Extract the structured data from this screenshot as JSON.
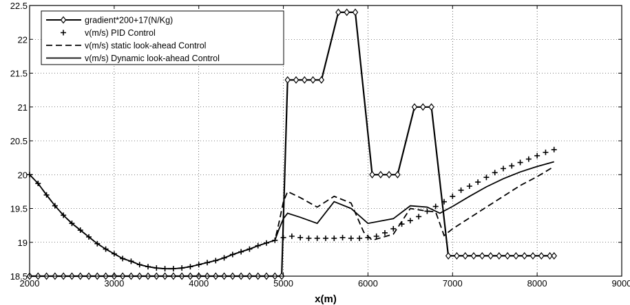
{
  "chart_data": {
    "type": "line",
    "title": "",
    "xlabel": "x(m)",
    "ylabel": "",
    "xlim": [
      2000,
      9000
    ],
    "ylim": [
      18.5,
      22.5
    ],
    "xticks": [
      2000,
      3000,
      4000,
      5000,
      6000,
      7000,
      8000,
      9000
    ],
    "xtick_labels": [
      "2000",
      "3000",
      "4000",
      "5000",
      "6000",
      "7000",
      "8000",
      "9000"
    ],
    "yticks": [
      18.5,
      19,
      19.5,
      20,
      20.5,
      21,
      21.5,
      22,
      22.5
    ],
    "ytick_labels": [
      "18.5",
      "19",
      "19.5",
      "20",
      "20.5",
      "21",
      "21.5",
      "22",
      "22.5"
    ],
    "grid": true,
    "legend_position": "top-left",
    "series": [
      {
        "name": "gradient*200+17(N/Kg)",
        "style": "solid-diamond",
        "color": "#000000",
        "x": [
          2000,
          2100,
          2200,
          2300,
          2400,
          2500,
          2600,
          2700,
          2800,
          2900,
          3000,
          3100,
          3200,
          3300,
          3400,
          3500,
          3600,
          3700,
          3800,
          3900,
          4000,
          4100,
          4200,
          4300,
          4400,
          4500,
          4600,
          4700,
          4800,
          4900,
          4980,
          5050,
          5150,
          5250,
          5350,
          5450,
          5650,
          5750,
          5850,
          6050,
          6150,
          6250,
          6350,
          6550,
          6650,
          6750,
          6950,
          7050,
          7150,
          7250,
          7350,
          7450,
          7550,
          7650,
          7750,
          7850,
          7950,
          8050,
          8150,
          8200
        ],
        "y": [
          18.5,
          18.5,
          18.5,
          18.5,
          18.5,
          18.5,
          18.5,
          18.5,
          18.5,
          18.5,
          18.5,
          18.5,
          18.5,
          18.5,
          18.5,
          18.5,
          18.5,
          18.5,
          18.5,
          18.5,
          18.5,
          18.5,
          18.5,
          18.5,
          18.5,
          18.5,
          18.5,
          18.5,
          18.5,
          18.5,
          18.5,
          21.4,
          21.4,
          21.4,
          21.4,
          21.4,
          22.4,
          22.4,
          22.4,
          20.0,
          20.0,
          20.0,
          20.0,
          21.0,
          21.0,
          21.0,
          18.8,
          18.8,
          18.8,
          18.8,
          18.8,
          18.8,
          18.8,
          18.8,
          18.8,
          18.8,
          18.8,
          18.8,
          18.8,
          18.8
        ]
      },
      {
        "name": "v(m/s) PID Control",
        "style": "plus-markers",
        "color": "#000000",
        "x": [
          2000,
          2100,
          2200,
          2300,
          2400,
          2500,
          2600,
          2700,
          2800,
          2900,
          3000,
          3100,
          3200,
          3300,
          3400,
          3500,
          3600,
          3700,
          3800,
          3900,
          4000,
          4100,
          4200,
          4300,
          4400,
          4500,
          4600,
          4700,
          4800,
          4900,
          5000,
          5100,
          5200,
          5300,
          5400,
          5500,
          5600,
          5700,
          5800,
          5900,
          6000,
          6100,
          6200,
          6300,
          6400,
          6500,
          6600,
          6700,
          6800,
          6900,
          7000,
          7100,
          7200,
          7300,
          7400,
          7500,
          7600,
          7700,
          7800,
          7900,
          8000,
          8100,
          8200
        ],
        "y": [
          20.0,
          19.87,
          19.7,
          19.54,
          19.4,
          19.28,
          19.18,
          19.08,
          18.98,
          18.9,
          18.83,
          18.76,
          18.72,
          18.67,
          18.64,
          18.62,
          18.61,
          18.61,
          18.62,
          18.64,
          18.67,
          18.7,
          18.73,
          18.77,
          18.82,
          18.86,
          18.9,
          18.95,
          18.99,
          19.03,
          19.07,
          19.09,
          19.07,
          19.06,
          19.06,
          19.06,
          19.06,
          19.07,
          19.06,
          19.06,
          19.07,
          19.09,
          19.14,
          19.2,
          19.27,
          19.32,
          19.38,
          19.46,
          19.53,
          19.6,
          19.68,
          19.77,
          19.83,
          19.89,
          19.96,
          20.03,
          20.09,
          20.13,
          20.18,
          20.23,
          20.28,
          20.33,
          20.37
        ]
      },
      {
        "name": "v(m/s) static look-ahead Control",
        "style": "dashed",
        "color": "#000000",
        "x": [
          2000,
          2100,
          2200,
          2300,
          2400,
          2500,
          2600,
          2700,
          2800,
          2900,
          3000,
          3100,
          3200,
          3300,
          3400,
          3500,
          3600,
          3700,
          3800,
          3900,
          4000,
          4100,
          4200,
          4300,
          4400,
          4500,
          4600,
          4700,
          4800,
          4900,
          4950,
          5000,
          5050,
          5200,
          5400,
          5600,
          5800,
          5950,
          6050,
          6300,
          6500,
          6700,
          6800,
          6900,
          7000,
          7100,
          7200,
          7400,
          7600,
          7800,
          8000,
          8200
        ],
        "y": [
          20.0,
          19.87,
          19.7,
          19.54,
          19.4,
          19.28,
          19.18,
          19.08,
          18.98,
          18.9,
          18.83,
          18.76,
          18.72,
          18.67,
          18.64,
          18.62,
          18.61,
          18.61,
          18.62,
          18.64,
          18.67,
          18.7,
          18.73,
          18.77,
          18.82,
          18.86,
          18.9,
          18.95,
          18.99,
          19.03,
          19.3,
          19.6,
          19.75,
          19.66,
          19.52,
          19.68,
          19.58,
          19.15,
          19.03,
          19.12,
          19.5,
          19.46,
          19.45,
          19.1,
          19.2,
          19.28,
          19.36,
          19.52,
          19.68,
          19.84,
          19.97,
          20.12
        ]
      },
      {
        "name": "v(m/s)  Dynamic look-ahead Control",
        "style": "solid",
        "color": "#000000",
        "x": [
          2000,
          2100,
          2200,
          2300,
          2400,
          2500,
          2600,
          2700,
          2800,
          2900,
          3000,
          3100,
          3200,
          3300,
          3400,
          3500,
          3600,
          3700,
          3800,
          3900,
          4000,
          4100,
          4200,
          4300,
          4400,
          4500,
          4600,
          4700,
          4800,
          4900,
          4950,
          5000,
          5050,
          5200,
          5400,
          5600,
          5800,
          6000,
          6300,
          6500,
          6700,
          6850,
          7000,
          7200,
          7400,
          7600,
          7800,
          8000,
          8200
        ],
        "y": [
          20.0,
          19.87,
          19.7,
          19.54,
          19.4,
          19.28,
          19.18,
          19.08,
          18.98,
          18.9,
          18.83,
          18.76,
          18.72,
          18.67,
          18.64,
          18.62,
          18.61,
          18.61,
          18.62,
          18.64,
          18.67,
          18.7,
          18.73,
          18.77,
          18.82,
          18.86,
          18.9,
          18.95,
          18.99,
          19.03,
          19.2,
          19.35,
          19.43,
          19.37,
          19.28,
          19.6,
          19.5,
          19.28,
          19.35,
          19.54,
          19.52,
          19.43,
          19.53,
          19.68,
          19.82,
          19.94,
          20.04,
          20.12,
          20.19
        ]
      }
    ]
  }
}
